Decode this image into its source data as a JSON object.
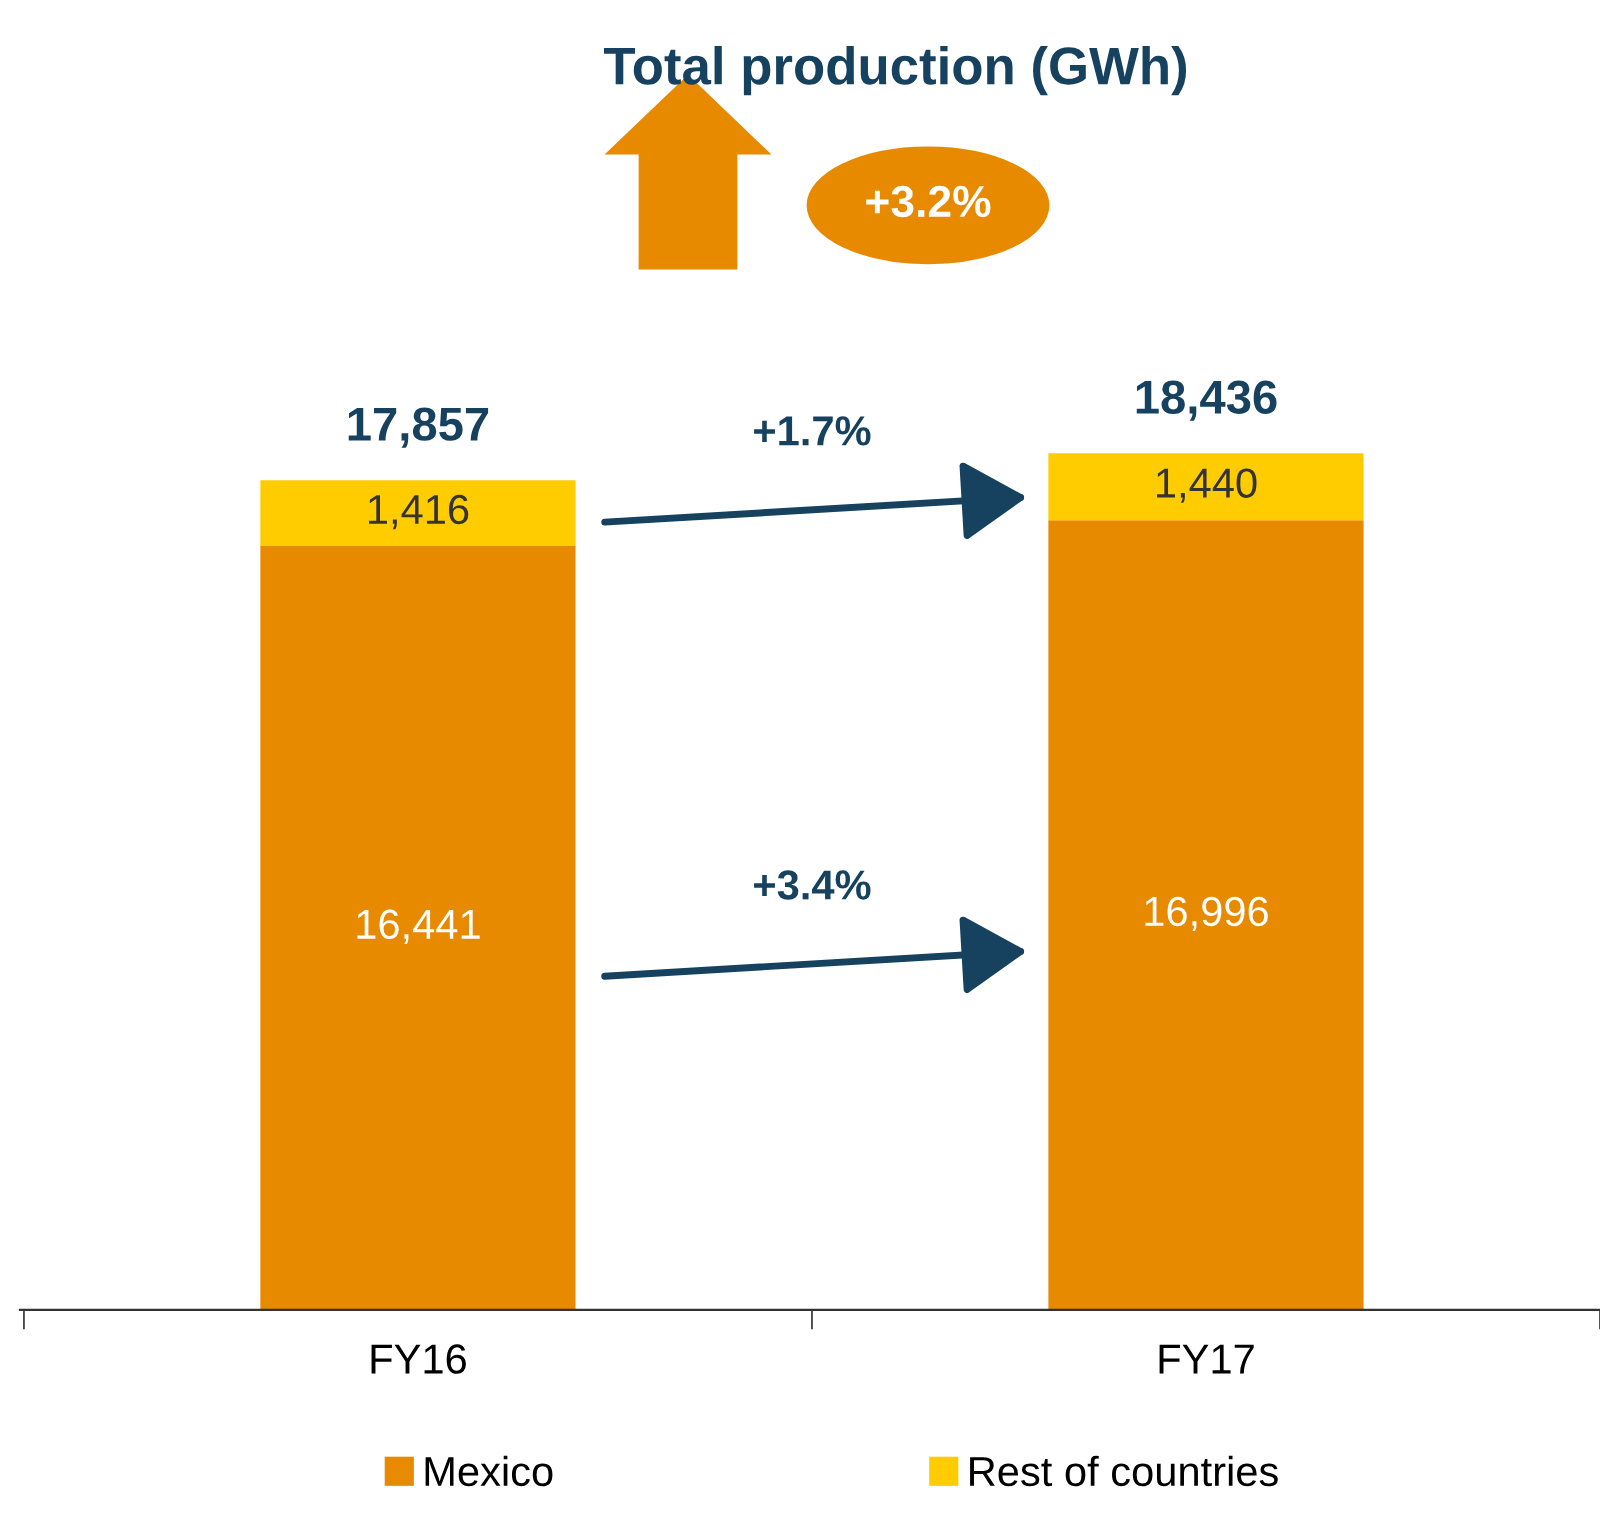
{
  "chart_data": {
    "type": "bar",
    "title": "Total production (GWh)",
    "stacked": true,
    "categories": [
      "FY16",
      "FY17"
    ],
    "series": [
      {
        "name": "Mexico",
        "color": "#e88a00",
        "values": [
          16441,
          16996
        ],
        "value_labels": [
          "16,441",
          "16,996"
        ]
      },
      {
        "name": "Rest of countries",
        "color": "#ffcc00",
        "values": [
          1416,
          1440
        ],
        "value_labels": [
          "1,416",
          "1,440"
        ]
      }
    ],
    "totals": [
      "17,857",
      "18,436"
    ],
    "annotations": [
      "+3.2%",
      "+1.7%",
      "+3.4%"
    ],
    "legend": "bottom",
    "grid": false
  }
}
